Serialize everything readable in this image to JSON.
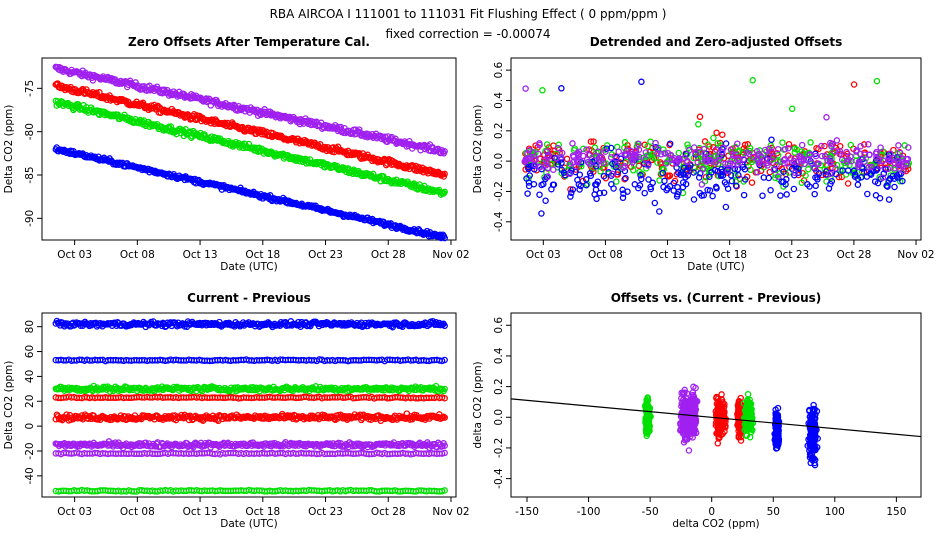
{
  "header": {
    "title": "RBA   AIRCOA I   111001 to 111031   Fit Flushing Effect ( 0 ppm/ppm )",
    "subtitle": "fixed correction = -0.00074"
  },
  "colors": {
    "purple": "#a020f0",
    "red": "#ff0000",
    "green": "#00e000",
    "blue": "#0000ff",
    "axis": "#000000"
  },
  "chart_data": [
    {
      "type": "scatter",
      "title": "Zero Offsets After Temperature Cal.",
      "xlabel": "Date (UTC)",
      "ylabel": "Delta CO2 (ppm)",
      "x_ticks": [
        "Oct 03",
        "Oct 08",
        "Oct 13",
        "Oct 18",
        "Oct 23",
        "Oct 28",
        "Nov 02"
      ],
      "x_tick_days": [
        3,
        8,
        13,
        18,
        23,
        28,
        33
      ],
      "xlim_days": [
        0.4,
        33.4
      ],
      "y_ticks": [
        "-75",
        "-80",
        "-85",
        "-90"
      ],
      "y_tick_values": [
        -75,
        -80,
        -85,
        -90
      ],
      "ylim": [
        -92.5,
        -71.5
      ],
      "series": [
        {
          "color": "purple",
          "x_range": [
            1.5,
            32.5
          ],
          "y_start": -72.7,
          "y_end": -82.3,
          "spread": 0.35
        },
        {
          "color": "red",
          "x_range": [
            1.5,
            32.5
          ],
          "y_start": -74.7,
          "y_end": -85.0,
          "spread": 0.35
        },
        {
          "color": "green",
          "x_range": [
            1.5,
            32.5
          ],
          "y_start": -76.6,
          "y_end": -87.1,
          "spread": 0.35
        },
        {
          "color": "blue",
          "x_range": [
            1.5,
            32.5
          ],
          "y_start": -82.0,
          "y_end": -92.2,
          "spread": 0.25
        }
      ]
    },
    {
      "type": "scatter",
      "title": "Detrended and Zero-adjusted Offsets",
      "xlabel": "Date (UTC)",
      "ylabel": "Delta CO2 (ppm)",
      "x_ticks": [
        "Oct 03",
        "Oct 08",
        "Oct 13",
        "Oct 18",
        "Oct 23",
        "Oct 28",
        "Nov 02"
      ],
      "x_tick_days": [
        3,
        8,
        13,
        18,
        23,
        28,
        33
      ],
      "xlim_days": [
        0.4,
        33.4
      ],
      "y_ticks": [
        "0.6",
        "0.4",
        "0.2",
        "0.0",
        "-0.2",
        "-0.4"
      ],
      "y_tick_values": [
        0.6,
        0.4,
        0.2,
        0.0,
        -0.2,
        -0.4
      ],
      "ylim": [
        -0.52,
        0.68
      ],
      "series": [
        {
          "color": "red",
          "x_range": [
            1.5,
            32.5
          ],
          "center": 0.0,
          "spread": 0.12
        },
        {
          "color": "green",
          "x_range": [
            1.5,
            32.5
          ],
          "center": 0.0,
          "spread": 0.12
        },
        {
          "color": "blue",
          "x_range": [
            1.5,
            32.5
          ],
          "center": -0.1,
          "spread": 0.16
        },
        {
          "color": "purple",
          "x_range": [
            1.5,
            32.5
          ],
          "center": 0.02,
          "spread": 0.08
        }
      ]
    },
    {
      "type": "scatter",
      "title": "Current - Previous",
      "xlabel": "Date (UTC)",
      "ylabel": "Delta CO2 (ppm)",
      "x_ticks": [
        "Oct 03",
        "Oct 08",
        "Oct 13",
        "Oct 18",
        "Oct 23",
        "Oct 28",
        "Nov 02"
      ],
      "x_tick_days": [
        3,
        8,
        13,
        18,
        23,
        28,
        33
      ],
      "xlim_days": [
        0.4,
        33.4
      ],
      "y_ticks": [
        "80",
        "60",
        "40",
        "20",
        "0",
        "-20",
        "-40"
      ],
      "y_tick_values": [
        80,
        60,
        40,
        20,
        0,
        -20,
        -40
      ],
      "ylim": [
        -57,
        91
      ],
      "series": [
        {
          "color": "blue",
          "x_range": [
            1.5,
            32.5
          ],
          "level": 82,
          "spread": 1.6,
          "style": "band"
        },
        {
          "color": "blue",
          "x_range": [
            1.5,
            32.5
          ],
          "level": 53,
          "spread": 0.5,
          "style": "line"
        },
        {
          "color": "green",
          "x_range": [
            1.5,
            32.5
          ],
          "level": 30,
          "spread": 1.6,
          "style": "band"
        },
        {
          "color": "red",
          "x_range": [
            1.5,
            32.5
          ],
          "level": 23,
          "spread": 0.5,
          "style": "line"
        },
        {
          "color": "red",
          "x_range": [
            1.5,
            32.5
          ],
          "level": 7,
          "spread": 1.8,
          "style": "band"
        },
        {
          "color": "purple",
          "x_range": [
            1.5,
            32.5
          ],
          "level": -15,
          "spread": 1.6,
          "style": "band"
        },
        {
          "color": "purple",
          "x_range": [
            1.5,
            32.5
          ],
          "level": -22,
          "spread": 0.5,
          "style": "line"
        },
        {
          "color": "green",
          "x_range": [
            1.5,
            32.5
          ],
          "level": -52,
          "spread": 0.5,
          "style": "line"
        }
      ]
    },
    {
      "type": "scatter",
      "title": "Offsets vs. (Current - Previous)",
      "xlabel": "delta CO2 (ppm)",
      "ylabel": "delta CO2 (ppm)",
      "x_ticks": [
        "-150",
        "-100",
        "-50",
        "0",
        "50",
        "100",
        "150"
      ],
      "x_tick_values": [
        -150,
        -100,
        -50,
        0,
        50,
        100,
        150
      ],
      "xlim": [
        -163,
        170
      ],
      "y_ticks": [
        "0.6",
        "0.4",
        "0.2",
        "0.0",
        "-0.2",
        "-0.4"
      ],
      "y_tick_values": [
        0.6,
        0.4,
        0.2,
        0.0,
        -0.2,
        -0.4
      ],
      "ylim": [
        -0.52,
        0.68
      ],
      "fit_line": {
        "x": [
          -163,
          170
        ],
        "y": [
          0.12,
          -0.126
        ]
      },
      "series": [
        {
          "color": "green",
          "x_center": -52,
          "x_spread": 1.5,
          "y_center": 0.0,
          "y_spread": 0.1
        },
        {
          "color": "purple",
          "x_center": -22,
          "x_spread": 2.5,
          "y_center": 0.0,
          "y_spread": 0.13
        },
        {
          "color": "purple",
          "x_center": -15,
          "x_spread": 2.0,
          "y_center": 0.02,
          "y_spread": 0.12
        },
        {
          "color": "red",
          "x_center": 7,
          "x_spread": 3.0,
          "y_center": 0.0,
          "y_spread": 0.12
        },
        {
          "color": "red",
          "x_center": 23,
          "x_spread": 1.5,
          "y_center": 0.0,
          "y_spread": 0.1
        },
        {
          "color": "green",
          "x_center": 30,
          "x_spread": 2.5,
          "y_center": 0.0,
          "y_spread": 0.1
        },
        {
          "color": "blue",
          "x_center": 53,
          "x_spread": 1.2,
          "y_center": -0.08,
          "y_spread": 0.1
        },
        {
          "color": "blue",
          "x_center": 82,
          "x_spread": 2.5,
          "y_center": -0.1,
          "y_spread": 0.16
        }
      ]
    }
  ]
}
